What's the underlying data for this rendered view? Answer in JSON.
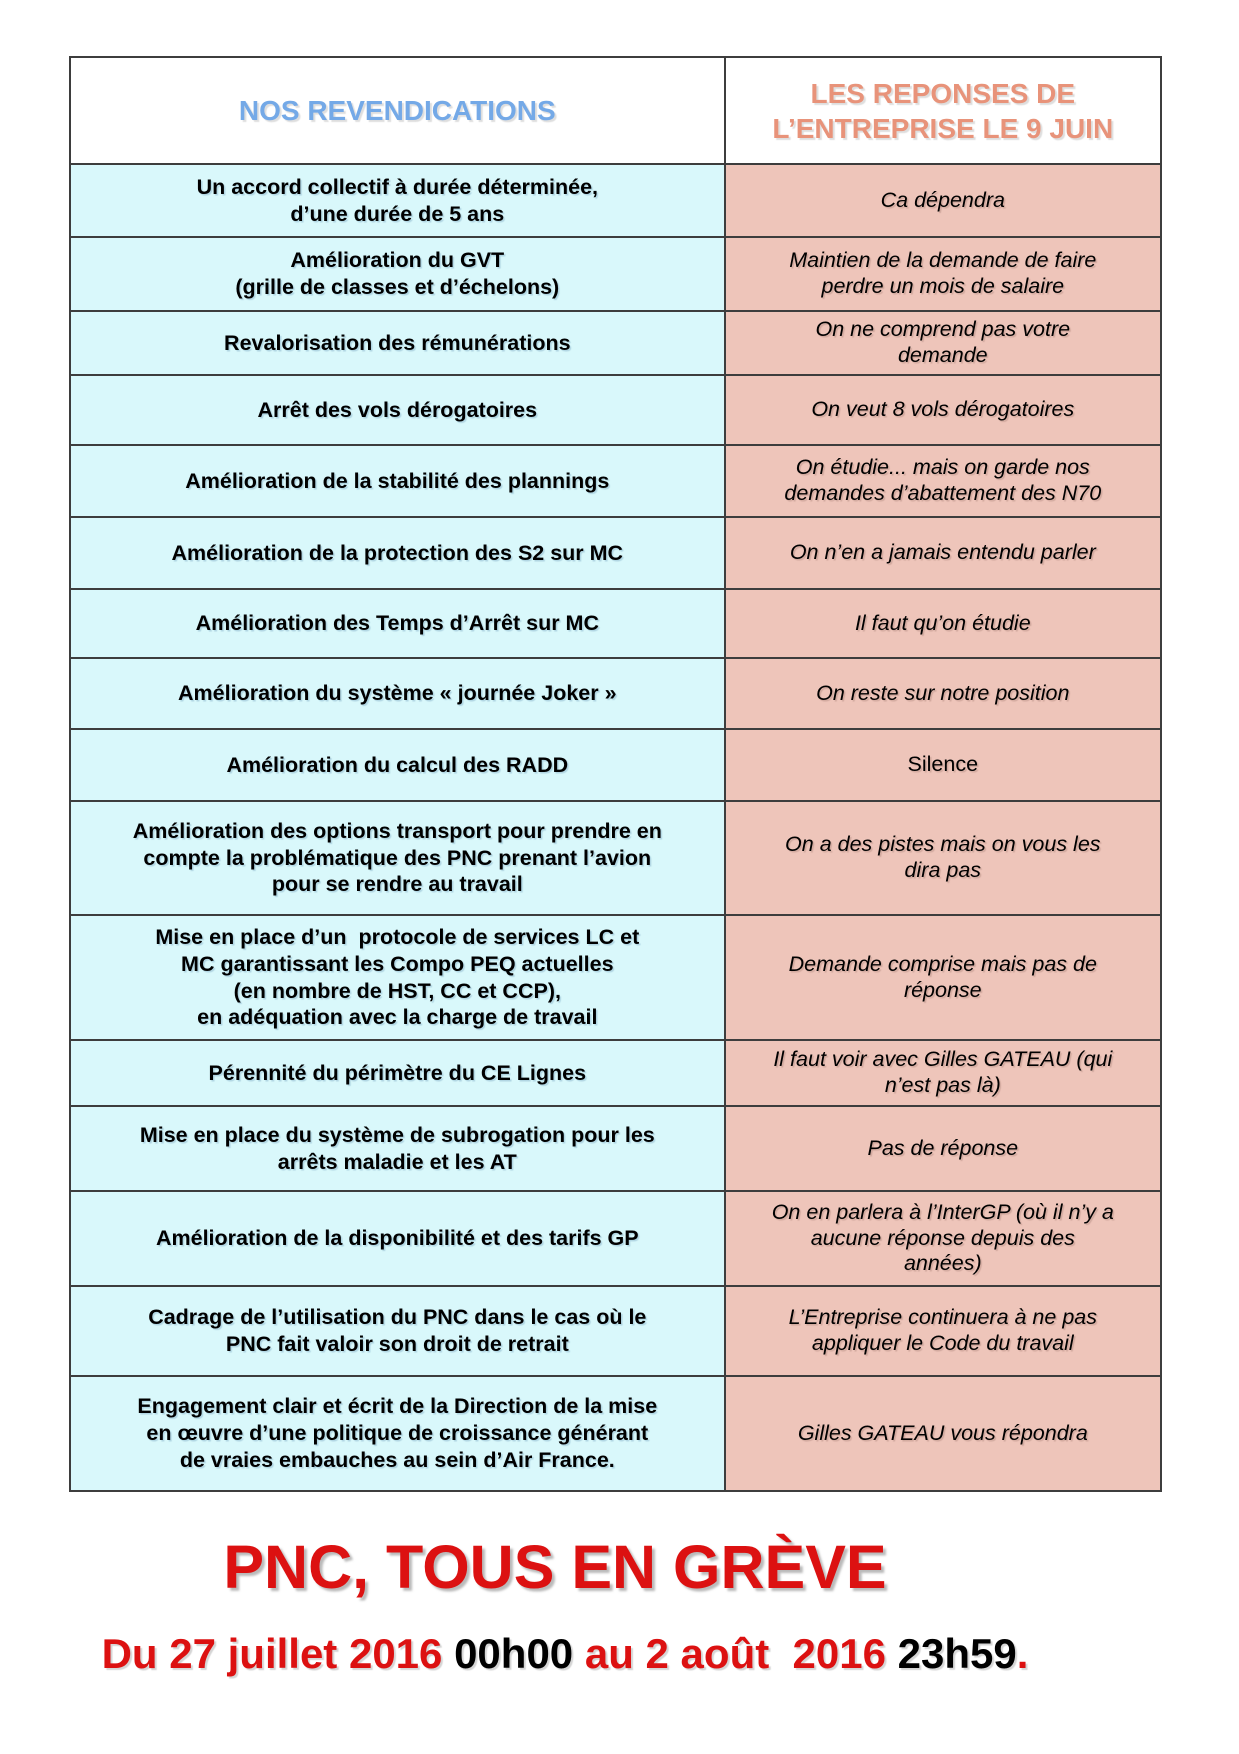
{
  "table": {
    "headers": [
      {
        "label": "NOS REVENDICATIONS",
        "color": "#74a9e7"
      },
      {
        "label": "LES REPONSES DE\nL’ENTREPRISE LE 9 JUIN",
        "color": "#e8937a"
      }
    ],
    "rows": [
      {
        "demand": "Un accord collectif à durée déterminée,\nd’une durée de 5 ans",
        "response": "Ca dépendra",
        "response_italic": true
      },
      {
        "demand": "Amélioration du GVT\n(grille de classes et d’échelons)",
        "response": "Maintien de la demande de faire\nperdre un mois de salaire",
        "response_italic": true
      },
      {
        "demand": "Revalorisation des rémunérations",
        "response": "On ne comprend pas votre\ndemande",
        "response_italic": true
      },
      {
        "demand": "Arrêt des vols dérogatoires",
        "response": "On veut 8 vols dérogatoires",
        "response_italic": true
      },
      {
        "demand": "Amélioration de la stabilité des plannings",
        "response": "On étudie... mais on garde nos\ndemandes d’abattement des N70",
        "response_italic": true
      },
      {
        "demand": "Amélioration de la protection des S2 sur MC",
        "response": "On n’en a jamais entendu parler",
        "response_italic": true
      },
      {
        "demand": "Amélioration des Temps d’Arrêt sur MC",
        "response": "Il faut qu’on étudie",
        "response_italic": true
      },
      {
        "demand": "Amélioration du système « journée Joker »",
        "response": "On reste sur notre position",
        "response_italic": true
      },
      {
        "demand": "Amélioration du calcul des RADD",
        "response": "Silence",
        "response_italic": false
      },
      {
        "demand": "Amélioration des options transport pour prendre en\ncompte la problématique des PNC prenant l’avion\npour se rendre au travail",
        "response": "On a des pistes mais on vous les\ndira pas",
        "response_italic": true
      },
      {
        "demand": "Mise en place d’un  protocole de services LC et\nMC garantissant les Compo PEQ actuelles\n(en nombre de HST, CC et CCP),\nen adéquation avec la charge de travail",
        "response": "Demande comprise mais pas de\nréponse",
        "response_italic": true
      },
      {
        "demand": "Pérennité du périmètre du CE Lignes",
        "response": "Il faut voir avec Gilles GATEAU (qui\nn’est pas là)",
        "response_italic": true
      },
      {
        "demand": "Mise en place du système de subrogation pour les\narrêts maladie et les AT",
        "response": "Pas de réponse",
        "response_italic": true
      },
      {
        "demand": "Amélioration de la disponibilité et des tarifs GP",
        "response": "On en parlera à l’InterGP (où il n’y a\naucune réponse depuis des\nannées)",
        "response_italic": true
      },
      {
        "demand": "Cadrage de l’utilisation du PNC dans le cas où le\nPNC fait valoir son droit de retrait",
        "response": "L’Entreprise continuera à ne pas\nappliquer le Code du travail",
        "response_italic": true
      },
      {
        "demand": "Engagement clair et écrit de la Direction de la mise\nen œuvre d’une politique de croissance générant\nde vraies embauches au sein d’Air France.",
        "response": "Gilles GATEAU vous répondra",
        "response_italic": true
      }
    ],
    "colors": {
      "demand_cell_bg": "#d9f8fb",
      "response_cell_bg": "#eec5ba",
      "border": "#3d3d3d"
    }
  },
  "footer": {
    "title": "PNC, TOUS EN GRÈVE",
    "title_color": "#dc1111",
    "date_line": [
      {
        "text": "Du 27 juillet 2016 ",
        "color": "#dc1111"
      },
      {
        "text": "00h00",
        "color": "#000000"
      },
      {
        "text": " au 2 août  2016 ",
        "color": "#dc1111"
      },
      {
        "text": "23h59",
        "color": "#000000"
      },
      {
        "text": ".",
        "color": "#dc1111"
      }
    ]
  }
}
